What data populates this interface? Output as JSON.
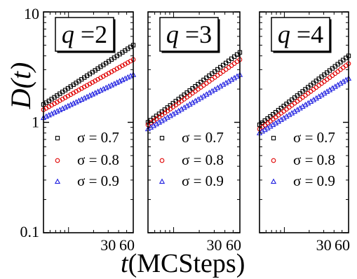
{
  "figure": {
    "y_axis_label": "D(t)",
    "x_axis_label_italic": "t",
    "x_axis_label_rest": "(MCSteps)"
  },
  "colors": {
    "sigma_0_7": "#000000",
    "sigma_0_8": "#e00000",
    "sigma_0_9": "#1f1fe0",
    "axes": "#000000"
  },
  "chart_data": [
    {
      "type": "scatter",
      "panel_label": "q =2",
      "xscale": "log",
      "yscale": "log",
      "xlim": [
        5,
        60
      ],
      "ylim": [
        0.1,
        10
      ],
      "x_tick_labels": [
        "30",
        "60"
      ],
      "y_tick_labels": [
        "0.1",
        "1",
        "10"
      ],
      "grid": false,
      "legend_position": "lower-left",
      "series": [
        {
          "name": "σ = 0.7",
          "marker": "square",
          "color_key": "sigma_0_7",
          "x_start": 5,
          "x_end": 60,
          "y_start": 1.45,
          "y_end": 5.0
        },
        {
          "name": "σ = 0.8",
          "marker": "circle",
          "color_key": "sigma_0_8",
          "x_start": 5,
          "x_end": 60,
          "y_start": 1.3,
          "y_end": 3.7
        },
        {
          "name": "σ = 0.9",
          "marker": "triangle",
          "color_key": "sigma_0_9",
          "x_start": 5,
          "x_end": 60,
          "y_start": 1.1,
          "y_end": 2.7
        }
      ]
    },
    {
      "type": "scatter",
      "panel_label": "q =3",
      "xscale": "log",
      "yscale": "log",
      "xlim": [
        5,
        60
      ],
      "ylim": [
        0.1,
        10
      ],
      "x_tick_labels": [
        "30",
        "60"
      ],
      "y_tick_labels": [],
      "grid": false,
      "legend_position": "lower-left",
      "series": [
        {
          "name": "σ = 0.7",
          "marker": "square",
          "color_key": "sigma_0_7",
          "x_start": 5,
          "x_end": 60,
          "y_start": 1.0,
          "y_end": 4.3
        },
        {
          "name": "σ = 0.8",
          "marker": "circle",
          "color_key": "sigma_0_8",
          "x_start": 5,
          "x_end": 60,
          "y_start": 0.95,
          "y_end": 3.7
        },
        {
          "name": "σ = 0.9",
          "marker": "triangle",
          "color_key": "sigma_0_9",
          "x_start": 5,
          "x_end": 60,
          "y_start": 0.87,
          "y_end": 2.7
        }
      ]
    },
    {
      "type": "scatter",
      "panel_label": "q =4",
      "xscale": "log",
      "yscale": "log",
      "xlim": [
        5,
        60
      ],
      "ylim": [
        0.1,
        10
      ],
      "x_tick_labels": [
        "30",
        "60"
      ],
      "y_tick_labels": [],
      "grid": false,
      "legend_position": "lower-left",
      "series": [
        {
          "name": "σ = 0.7",
          "marker": "square",
          "color_key": "sigma_0_7",
          "x_start": 5,
          "x_end": 60,
          "y_start": 0.95,
          "y_end": 4.0
        },
        {
          "name": "σ = 0.8",
          "marker": "circle",
          "color_key": "sigma_0_8",
          "x_start": 5,
          "x_end": 60,
          "y_start": 0.87,
          "y_end": 3.4
        },
        {
          "name": "σ = 0.9",
          "marker": "triangle",
          "color_key": "sigma_0_9",
          "x_start": 5,
          "x_end": 60,
          "y_start": 0.8,
          "y_end": 2.5
        }
      ]
    }
  ]
}
